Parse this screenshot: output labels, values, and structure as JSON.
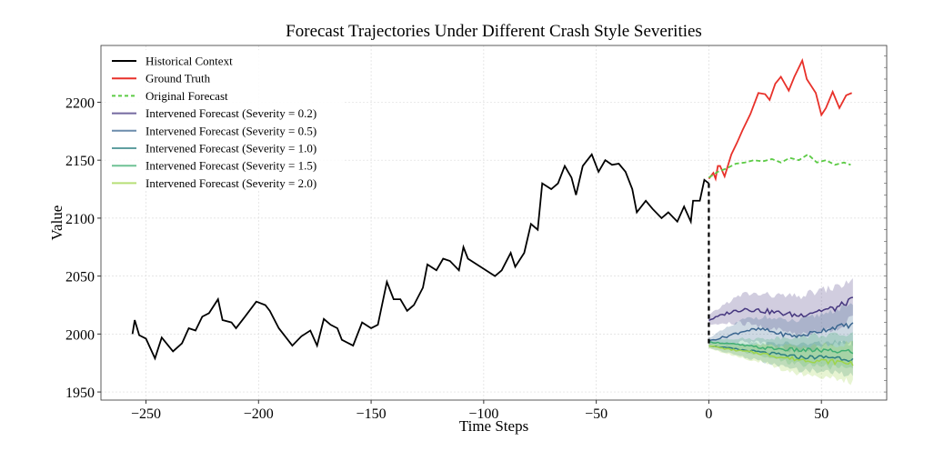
{
  "chart_data": {
    "type": "line",
    "title": "Forecast Trajectories Under Different Crash Style Severities",
    "xlabel": "Time Steps",
    "ylabel": "Value",
    "xlim": [
      -270,
      79
    ],
    "ylim": [
      1943,
      2249
    ],
    "xticks": [
      -250,
      -200,
      -150,
      -100,
      -50,
      0,
      50
    ],
    "yticks": [
      1950,
      2000,
      2050,
      2100,
      2150,
      2200
    ],
    "xtick_labels": [
      "−250",
      "−200",
      "−150",
      "−100",
      "−50",
      "0",
      "50"
    ],
    "ytick_labels": [
      "1950",
      "2000",
      "2050",
      "2100",
      "2150",
      "2200"
    ],
    "grid": true,
    "legend_position": "top-left",
    "series": [
      {
        "name": "Historical Context",
        "color": "#000000",
        "style": "solid",
        "x": [
          -256,
          -255,
          -253,
          -250,
          -246,
          -243,
          -238,
          -234,
          -231,
          -228,
          -225,
          -222,
          -218,
          -216,
          -212,
          -210,
          -206,
          -201,
          -197,
          -195,
          -191,
          -187,
          -185,
          -181,
          -177,
          -174,
          -171,
          -168,
          -165,
          -163,
          -158,
          -154,
          -150,
          -147,
          -143,
          -140,
          -137,
          -134,
          -131,
          -127,
          -125,
          -121,
          -118,
          -115,
          -111,
          -109,
          -107,
          -103,
          -99,
          -95,
          -92,
          -88,
          -86,
          -82,
          -79,
          -76,
          -74,
          -70,
          -67,
          -64,
          -61,
          -59,
          -56,
          -52,
          -49,
          -46,
          -43,
          -40,
          -37,
          -34,
          -32,
          -28,
          -25,
          -21,
          -18,
          -14,
          -11,
          -8,
          -7,
          -4,
          -2,
          0
        ],
        "y": [
          2000,
          2012,
          1999,
          1996,
          1979,
          1997,
          1985,
          1992,
          2005,
          2003,
          2015,
          2018,
          2030,
          2012,
          2010,
          2005,
          2015,
          2028,
          2025,
          2020,
          2005,
          1995,
          1990,
          1998,
          2003,
          1990,
          2013,
          2008,
          2005,
          1995,
          1990,
          2010,
          2005,
          2008,
          2045,
          2030,
          2030,
          2020,
          2025,
          2040,
          2060,
          2055,
          2065,
          2063,
          2055,
          2075,
          2065,
          2060,
          2055,
          2050,
          2055,
          2070,
          2058,
          2070,
          2095,
          2090,
          2130,
          2125,
          2130,
          2145,
          2135,
          2120,
          2145,
          2155,
          2140,
          2150,
          2146,
          2147,
          2140,
          2125,
          2105,
          2115,
          2108,
          2100,
          2105,
          2097,
          2110,
          2097,
          2115,
          2115,
          2133,
          2130
        ]
      },
      {
        "name": "Ground Truth",
        "color": "#e8312a",
        "style": "solid",
        "x": [
          0,
          2,
          3,
          4,
          5,
          7,
          10,
          12.5,
          15,
          18.5,
          22,
          25,
          27,
          29.5,
          32,
          35.5,
          38,
          39.5,
          41.5,
          43.5,
          47.5,
          50,
          52,
          55,
          58,
          61,
          63.5
        ],
        "y": [
          2134,
          2139,
          2134,
          2145,
          2145,
          2136,
          2155,
          2165,
          2176,
          2190,
          2208,
          2207,
          2202,
          2216,
          2222,
          2210,
          2222,
          2228,
          2236,
          2220,
          2208,
          2189,
          2195,
          2209,
          2195,
          2206,
          2208
        ]
      },
      {
        "name": "Original Forecast",
        "color": "#5ccb45",
        "style": "dashed",
        "x": [
          0,
          4,
          8,
          12,
          16,
          20,
          24,
          28,
          32,
          36,
          40,
          44,
          48,
          52,
          56,
          60,
          63
        ],
        "y": [
          2135,
          2140,
          2143,
          2147,
          2148,
          2150,
          2149,
          2151,
          2148,
          2152,
          2150,
          2155,
          2148,
          2150,
          2146,
          2148,
          2146
        ]
      },
      {
        "name": "Intervened Forecast (Severity = 0.2)",
        "color": "#46377f",
        "style": "solid",
        "x": [
          0,
          8,
          16,
          24,
          32,
          40,
          48,
          56,
          64
        ],
        "y": [
          2012,
          2018,
          2022,
          2020,
          2018,
          2016,
          2020,
          2022,
          2030
        ],
        "band": [
          4,
          9,
          13,
          14,
          15,
          16,
          17,
          18,
          16
        ]
      },
      {
        "name": "Intervened Forecast (Severity = 0.5)",
        "color": "#3b6690",
        "style": "solid",
        "x": [
          0,
          8,
          16,
          24,
          32,
          40,
          48,
          56,
          64
        ],
        "y": [
          1994,
          1998,
          2003,
          2004,
          2000,
          1998,
          2002,
          2006,
          2008
        ],
        "band": [
          3,
          7,
          10,
          11,
          12,
          13,
          14,
          15,
          16
        ]
      },
      {
        "name": "Intervened Forecast (Severity = 1.0)",
        "color": "#2b7f80",
        "style": "solid",
        "x": [
          0,
          8,
          16,
          24,
          32,
          40,
          48,
          56,
          64
        ],
        "y": [
          1990,
          1988,
          1986,
          1984,
          1982,
          1980,
          1980,
          1980,
          1978
        ],
        "band": [
          2,
          4,
          6,
          8,
          10,
          11,
          12,
          13,
          14
        ]
      },
      {
        "name": "Intervened Forecast (Severity = 1.5)",
        "color": "#3fae72",
        "style": "solid",
        "x": [
          0,
          8,
          16,
          24,
          32,
          40,
          48,
          56,
          64
        ],
        "y": [
          1993,
          1992,
          1990,
          1988,
          1987,
          1986,
          1986,
          1985,
          1985
        ],
        "band": [
          2,
          4,
          6,
          8,
          10,
          12,
          13,
          14,
          15
        ]
      },
      {
        "name": "Intervened Forecast (Severity = 2.0)",
        "color": "#9fd44a",
        "style": "solid",
        "x": [
          0,
          8,
          16,
          24,
          32,
          40,
          48,
          56,
          64
        ],
        "y": [
          1990,
          1987,
          1985,
          1983,
          1980,
          1978,
          1977,
          1976,
          1975
        ],
        "band": [
          2,
          4,
          6,
          8,
          10,
          12,
          13,
          15,
          17
        ]
      }
    ],
    "connector": {
      "x": [
        0,
        0
      ],
      "y": [
        2130,
        1989
      ],
      "style": "dashed",
      "color": "#000000"
    }
  }
}
